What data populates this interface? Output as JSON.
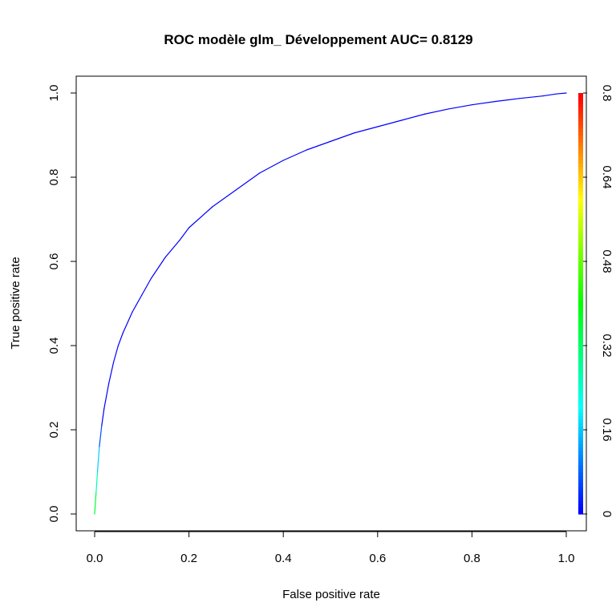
{
  "chart_data": {
    "type": "line",
    "title": "ROC modèle glm_ Développement  AUC= 0.8129",
    "xlabel": "False positive rate",
    "ylabel": "True positive rate",
    "xlim": [
      0,
      1
    ],
    "ylim": [
      0,
      1
    ],
    "x_ticks": [
      "0.0",
      "0.2",
      "0.4",
      "0.6",
      "0.8",
      "1.0"
    ],
    "y_ticks": [
      "0.0",
      "0.2",
      "0.4",
      "0.6",
      "0.8",
      "1.0"
    ],
    "colorbar": {
      "range": [
        0,
        0.8
      ],
      "tick_labels": [
        "0",
        "0.16",
        "0.32",
        "0.48",
        "0.64",
        "0.8"
      ],
      "colors": [
        "#0000ff",
        "#00ffff",
        "#00ff00",
        "#ffff00",
        "#ff0000"
      ]
    },
    "grid": false,
    "series": [
      {
        "x": [
          0.0,
          0.003,
          0.006,
          0.01,
          0.015,
          0.02,
          0.03,
          0.04,
          0.05,
          0.06,
          0.08,
          0.1,
          0.12,
          0.15,
          0.18,
          0.2,
          0.25,
          0.3,
          0.35,
          0.4,
          0.45,
          0.5,
          0.55,
          0.6,
          0.65,
          0.7,
          0.75,
          0.8,
          0.85,
          0.9,
          0.95,
          0.98,
          1.0
        ],
        "y": [
          0.0,
          0.05,
          0.1,
          0.16,
          0.21,
          0.25,
          0.31,
          0.36,
          0.4,
          0.43,
          0.48,
          0.52,
          0.56,
          0.61,
          0.65,
          0.68,
          0.73,
          0.77,
          0.81,
          0.84,
          0.865,
          0.885,
          0.905,
          0.92,
          0.935,
          0.95,
          0.962,
          0.972,
          0.98,
          0.987,
          0.993,
          0.998,
          1.0
        ]
      }
    ]
  }
}
